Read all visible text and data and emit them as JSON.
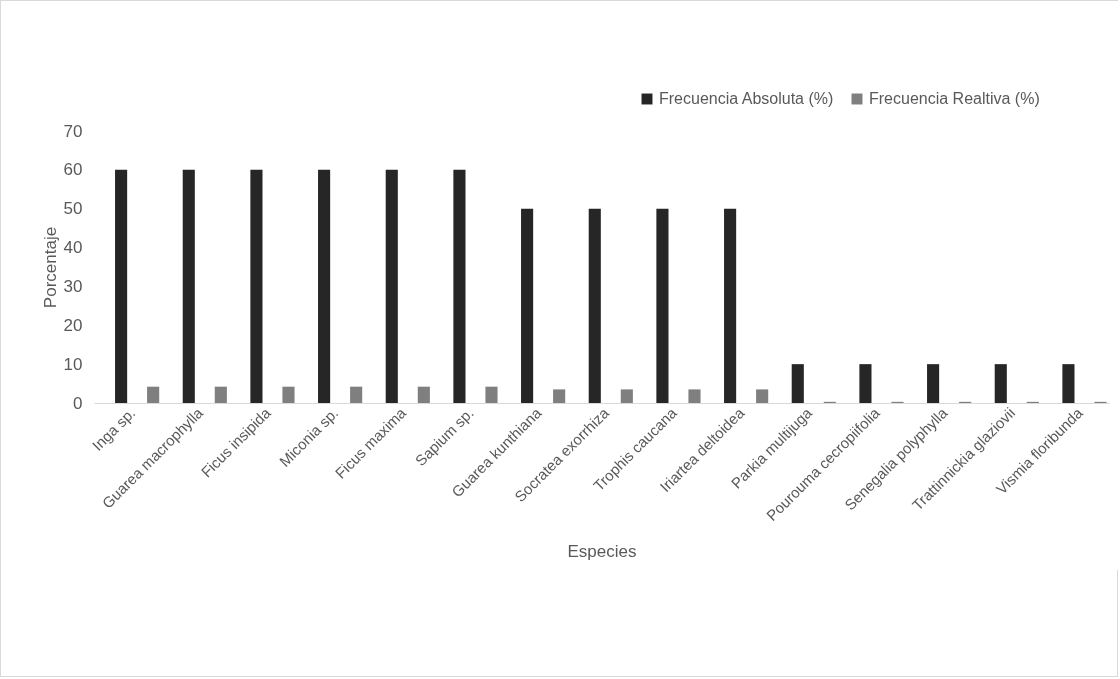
{
  "chart_data": {
    "type": "bar",
    "xlabel": "Especies",
    "ylabel": "Porcentaje",
    "categories": [
      "Inga sp.",
      "Guarea macrophylla",
      "Ficus insipida",
      "Miconia sp.",
      "Ficus maxima",
      "Sapium sp.",
      "Guarea kunthiana",
      "Socratea exorrhiza",
      "Trophis caucana",
      "Iriartea deltoidea",
      "Parkia multijuga",
      "Pourouma cecropiifolia",
      "Senegalia polyphylla",
      "Trattinnickia glaziovii",
      "Vismia floribunda"
    ],
    "series": [
      {
        "name": "Frecuencia Absoluta (%)",
        "color": "#262626",
        "values": [
          60,
          60,
          60,
          60,
          60,
          60,
          50,
          50,
          50,
          50,
          10,
          10,
          10,
          10,
          10
        ]
      },
      {
        "name": "Frecuencia Realtiva (%)",
        "color": "#7f7f7f",
        "values": [
          4.2,
          4.2,
          4.2,
          4.2,
          4.2,
          4.2,
          3.5,
          3.5,
          3.5,
          3.5,
          0.3,
          0.3,
          0.3,
          0.3,
          0.3
        ]
      }
    ],
    "ylim": [
      0,
      70
    ],
    "yticks": [
      0,
      10,
      20,
      30,
      40,
      50,
      60,
      70
    ],
    "grid": false,
    "legend": "top right"
  }
}
